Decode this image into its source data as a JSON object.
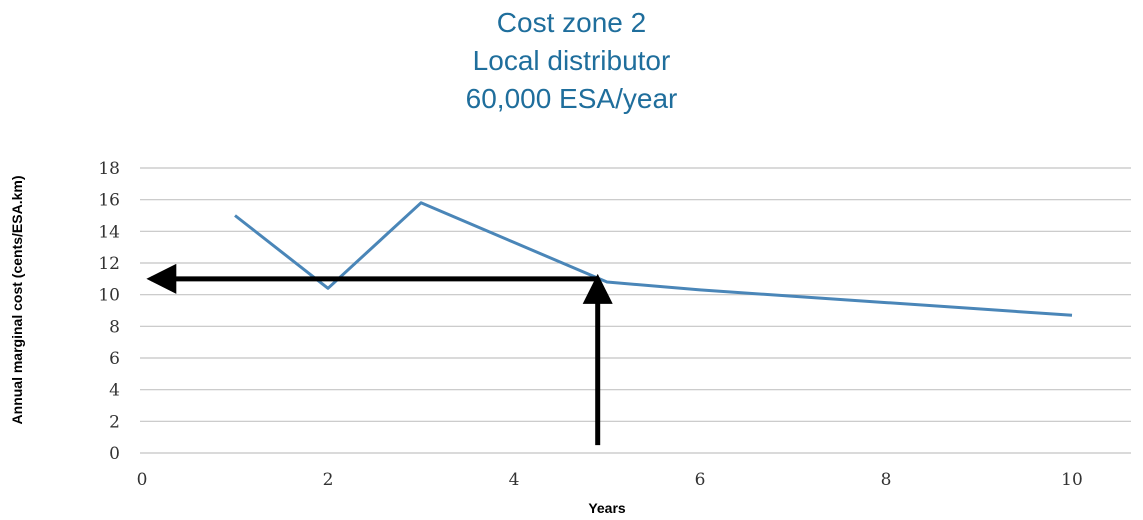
{
  "title_lines": [
    "Cost zone 2",
    "Local distributor",
    "60,000 ESA/year"
  ],
  "chart_data": {
    "type": "line",
    "title": "Cost zone 2 Local distributor 60,000 ESA/year",
    "xlabel": "Years",
    "ylabel": "Annual marginal cost (cents/ESA.km)",
    "xlim": [
      0,
      10.5
    ],
    "ylim": [
      0,
      18
    ],
    "x_ticks": [
      0,
      2,
      4,
      6,
      8,
      10
    ],
    "y_ticks": [
      0,
      2,
      4,
      6,
      8,
      10,
      12,
      14,
      16,
      18
    ],
    "grid": "horizontal",
    "series_color": "#4a86b8",
    "series": [
      {
        "x": [
          1,
          2,
          3,
          4,
          5,
          6,
          7,
          8,
          9,
          10
        ],
        "values": [
          15.0,
          10.4,
          15.8,
          13.3,
          10.8,
          10.3,
          9.9,
          9.5,
          9.1,
          8.7
        ]
      }
    ],
    "annotations": [
      {
        "type": "arrow",
        "from": [
          4.9,
          0.5
        ],
        "to": [
          4.9,
          11.0
        ],
        "color": "#000000"
      },
      {
        "type": "arrow",
        "from": [
          4.9,
          11.0
        ],
        "to": [
          0.1,
          11.0
        ],
        "color": "#000000"
      }
    ]
  }
}
